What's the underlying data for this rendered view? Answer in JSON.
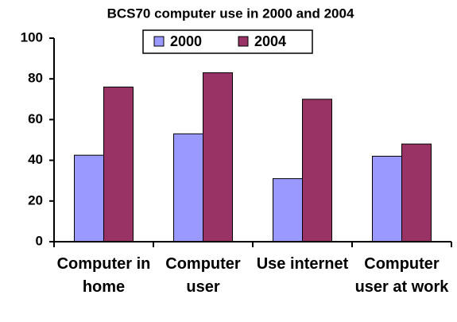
{
  "chart_data": {
    "type": "bar",
    "title": "BCS70 computer use in 2000 and 2004",
    "categories": [
      "Computer in home",
      "Computer user",
      "Use internet",
      "Computer user at work"
    ],
    "series": [
      {
        "name": "2000",
        "color": "#9999ff",
        "values": [
          42.5,
          53,
          31,
          42
        ]
      },
      {
        "name": "2004",
        "color": "#993366",
        "values": [
          76,
          83,
          70,
          48
        ]
      }
    ],
    "ylim": [
      0,
      100
    ],
    "yticks": [
      0,
      20,
      40,
      60,
      80,
      100
    ],
    "grid": false,
    "legend": "top"
  }
}
